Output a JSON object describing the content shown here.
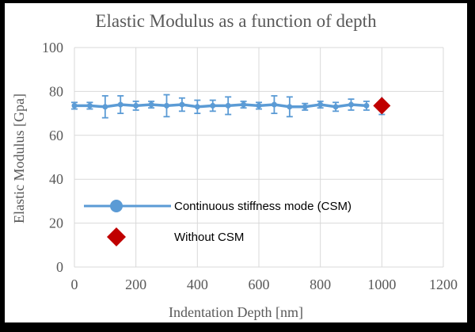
{
  "chart_data": {
    "type": "line",
    "title": "Elastic Modulus as a function of depth",
    "xlabel": "Indentation Depth [nm]",
    "ylabel": "Elastic Modulus [Gpa]",
    "xlim": [
      0,
      1200
    ],
    "ylim": [
      0,
      100
    ],
    "xticks": [
      0,
      200,
      400,
      600,
      800,
      1000,
      1200
    ],
    "yticks": [
      0,
      20,
      40,
      60,
      80,
      100
    ],
    "grid": true,
    "legend_position": "center-left",
    "colors": {
      "csm": "#5b9bd5",
      "without_csm": "#c00000",
      "grid": "#d9d9d9",
      "text": "#595959"
    },
    "series": [
      {
        "name": "Continuous stiffness mode (CSM)",
        "marker": "circle",
        "x": [
          0,
          50,
          100,
          150,
          200,
          250,
          300,
          350,
          400,
          450,
          500,
          550,
          600,
          650,
          700,
          750,
          800,
          850,
          900,
          950
        ],
        "y": [
          73.5,
          73.5,
          73.0,
          74.0,
          73.5,
          74.0,
          73.5,
          74.0,
          73.0,
          73.5,
          73.5,
          74.0,
          73.5,
          74.0,
          73.0,
          73.0,
          74.0,
          73.0,
          74.0,
          73.5
        ],
        "err": [
          1.5,
          1.5,
          5.0,
          4.0,
          2.0,
          1.5,
          5.0,
          3.0,
          3.0,
          2.5,
          4.0,
          1.5,
          1.5,
          4.0,
          4.5,
          1.5,
          1.5,
          2.0,
          2.5,
          2.0
        ]
      },
      {
        "name": "Without CSM",
        "marker": "diamond",
        "x": [
          1000
        ],
        "y": [
          73.5
        ],
        "err": [
          4.0
        ]
      }
    ]
  }
}
